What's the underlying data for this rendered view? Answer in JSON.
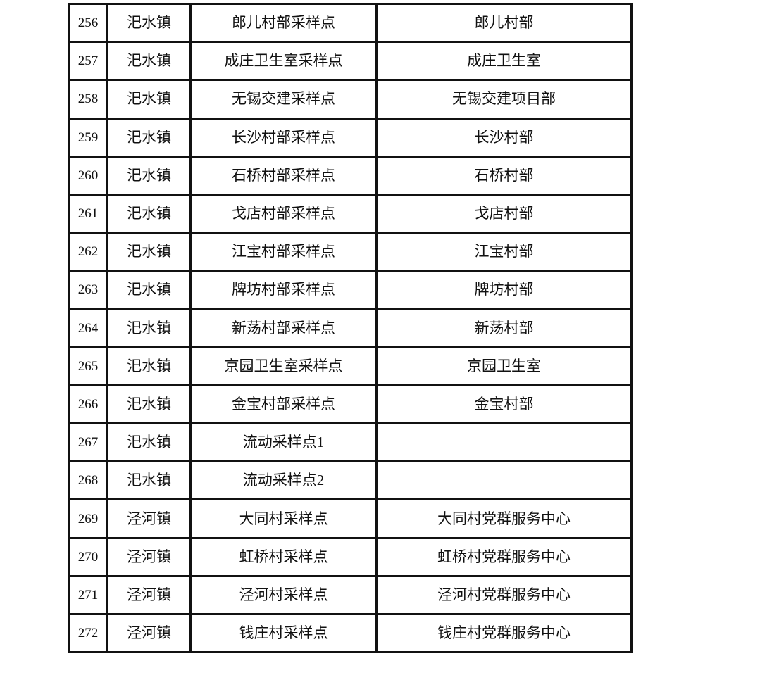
{
  "rows": [
    {
      "no": "256",
      "town": "汜水镇",
      "site": "郎儿村部采样点",
      "location": "郎儿村部"
    },
    {
      "no": "257",
      "town": "汜水镇",
      "site": "成庄卫生室采样点",
      "location": "成庄卫生室"
    },
    {
      "no": "258",
      "town": "汜水镇",
      "site": "无锡交建采样点",
      "location": "无锡交建项目部"
    },
    {
      "no": "259",
      "town": "汜水镇",
      "site": "长沙村部采样点",
      "location": "长沙村部"
    },
    {
      "no": "260",
      "town": "汜水镇",
      "site": "石桥村部采样点",
      "location": "石桥村部"
    },
    {
      "no": "261",
      "town": "汜水镇",
      "site": "戈店村部采样点",
      "location": "戈店村部"
    },
    {
      "no": "262",
      "town": "汜水镇",
      "site": "江宝村部采样点",
      "location": "江宝村部"
    },
    {
      "no": "263",
      "town": "汜水镇",
      "site": "牌坊村部采样点",
      "location": "牌坊村部"
    },
    {
      "no": "264",
      "town": "汜水镇",
      "site": "新荡村部采样点",
      "location": "新荡村部"
    },
    {
      "no": "265",
      "town": "汜水镇",
      "site": "京园卫生室采样点",
      "location": "京园卫生室"
    },
    {
      "no": "266",
      "town": "汜水镇",
      "site": "金宝村部采样点",
      "location": "金宝村部"
    },
    {
      "no": "267",
      "town": "汜水镇",
      "site": "流动采样点1",
      "location": ""
    },
    {
      "no": "268",
      "town": "汜水镇",
      "site": "流动采样点2",
      "location": ""
    },
    {
      "no": "269",
      "town": "泾河镇",
      "site": "大同村采样点",
      "location": "大同村党群服务中心"
    },
    {
      "no": "270",
      "town": "泾河镇",
      "site": "虹桥村采样点",
      "location": "虹桥村党群服务中心"
    },
    {
      "no": "271",
      "town": "泾河镇",
      "site": "泾河村采样点",
      "location": "泾河村党群服务中心"
    },
    {
      "no": "272",
      "town": "泾河镇",
      "site": "钱庄村采样点",
      "location": "钱庄村党群服务中心"
    }
  ]
}
